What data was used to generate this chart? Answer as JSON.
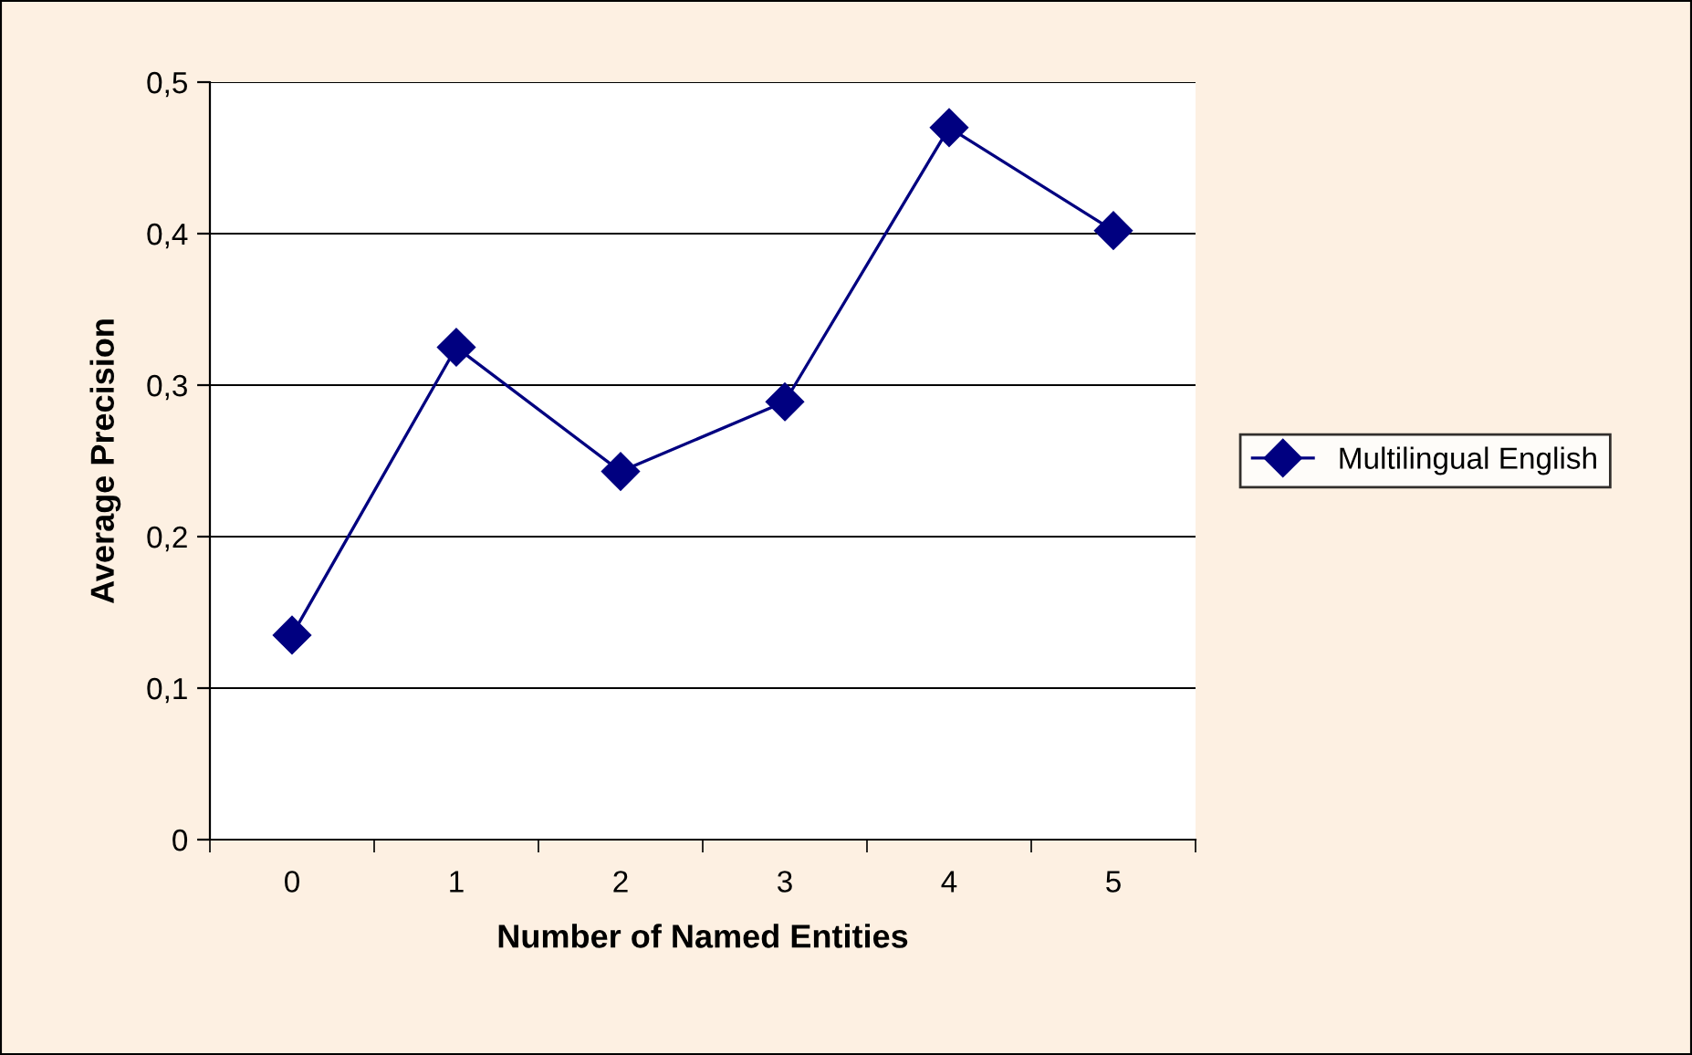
{
  "chart_data": {
    "type": "line",
    "xlabel": "Number of Named Entities",
    "ylabel": "Average Precision",
    "categories": [
      "0",
      "1",
      "2",
      "3",
      "4",
      "5"
    ],
    "series": [
      {
        "name": "Multilingual English",
        "color": "#000080",
        "values": [
          0.135,
          0.325,
          0.243,
          0.289,
          0.47,
          0.402
        ]
      }
    ],
    "ylim": [
      0,
      0.5
    ],
    "yticks": [
      0,
      {
        "value": 0.1,
        "label": "0,1"
      },
      {
        "value": 0.2,
        "label": "0,2"
      },
      {
        "value": 0.3,
        "label": "0,3"
      },
      {
        "value": 0.4,
        "label": "0,4"
      },
      {
        "value": 0.5,
        "label": "0,5"
      }
    ],
    "grid": "y",
    "legend": "right",
    "marker": "diamond",
    "line_style": "solid"
  }
}
